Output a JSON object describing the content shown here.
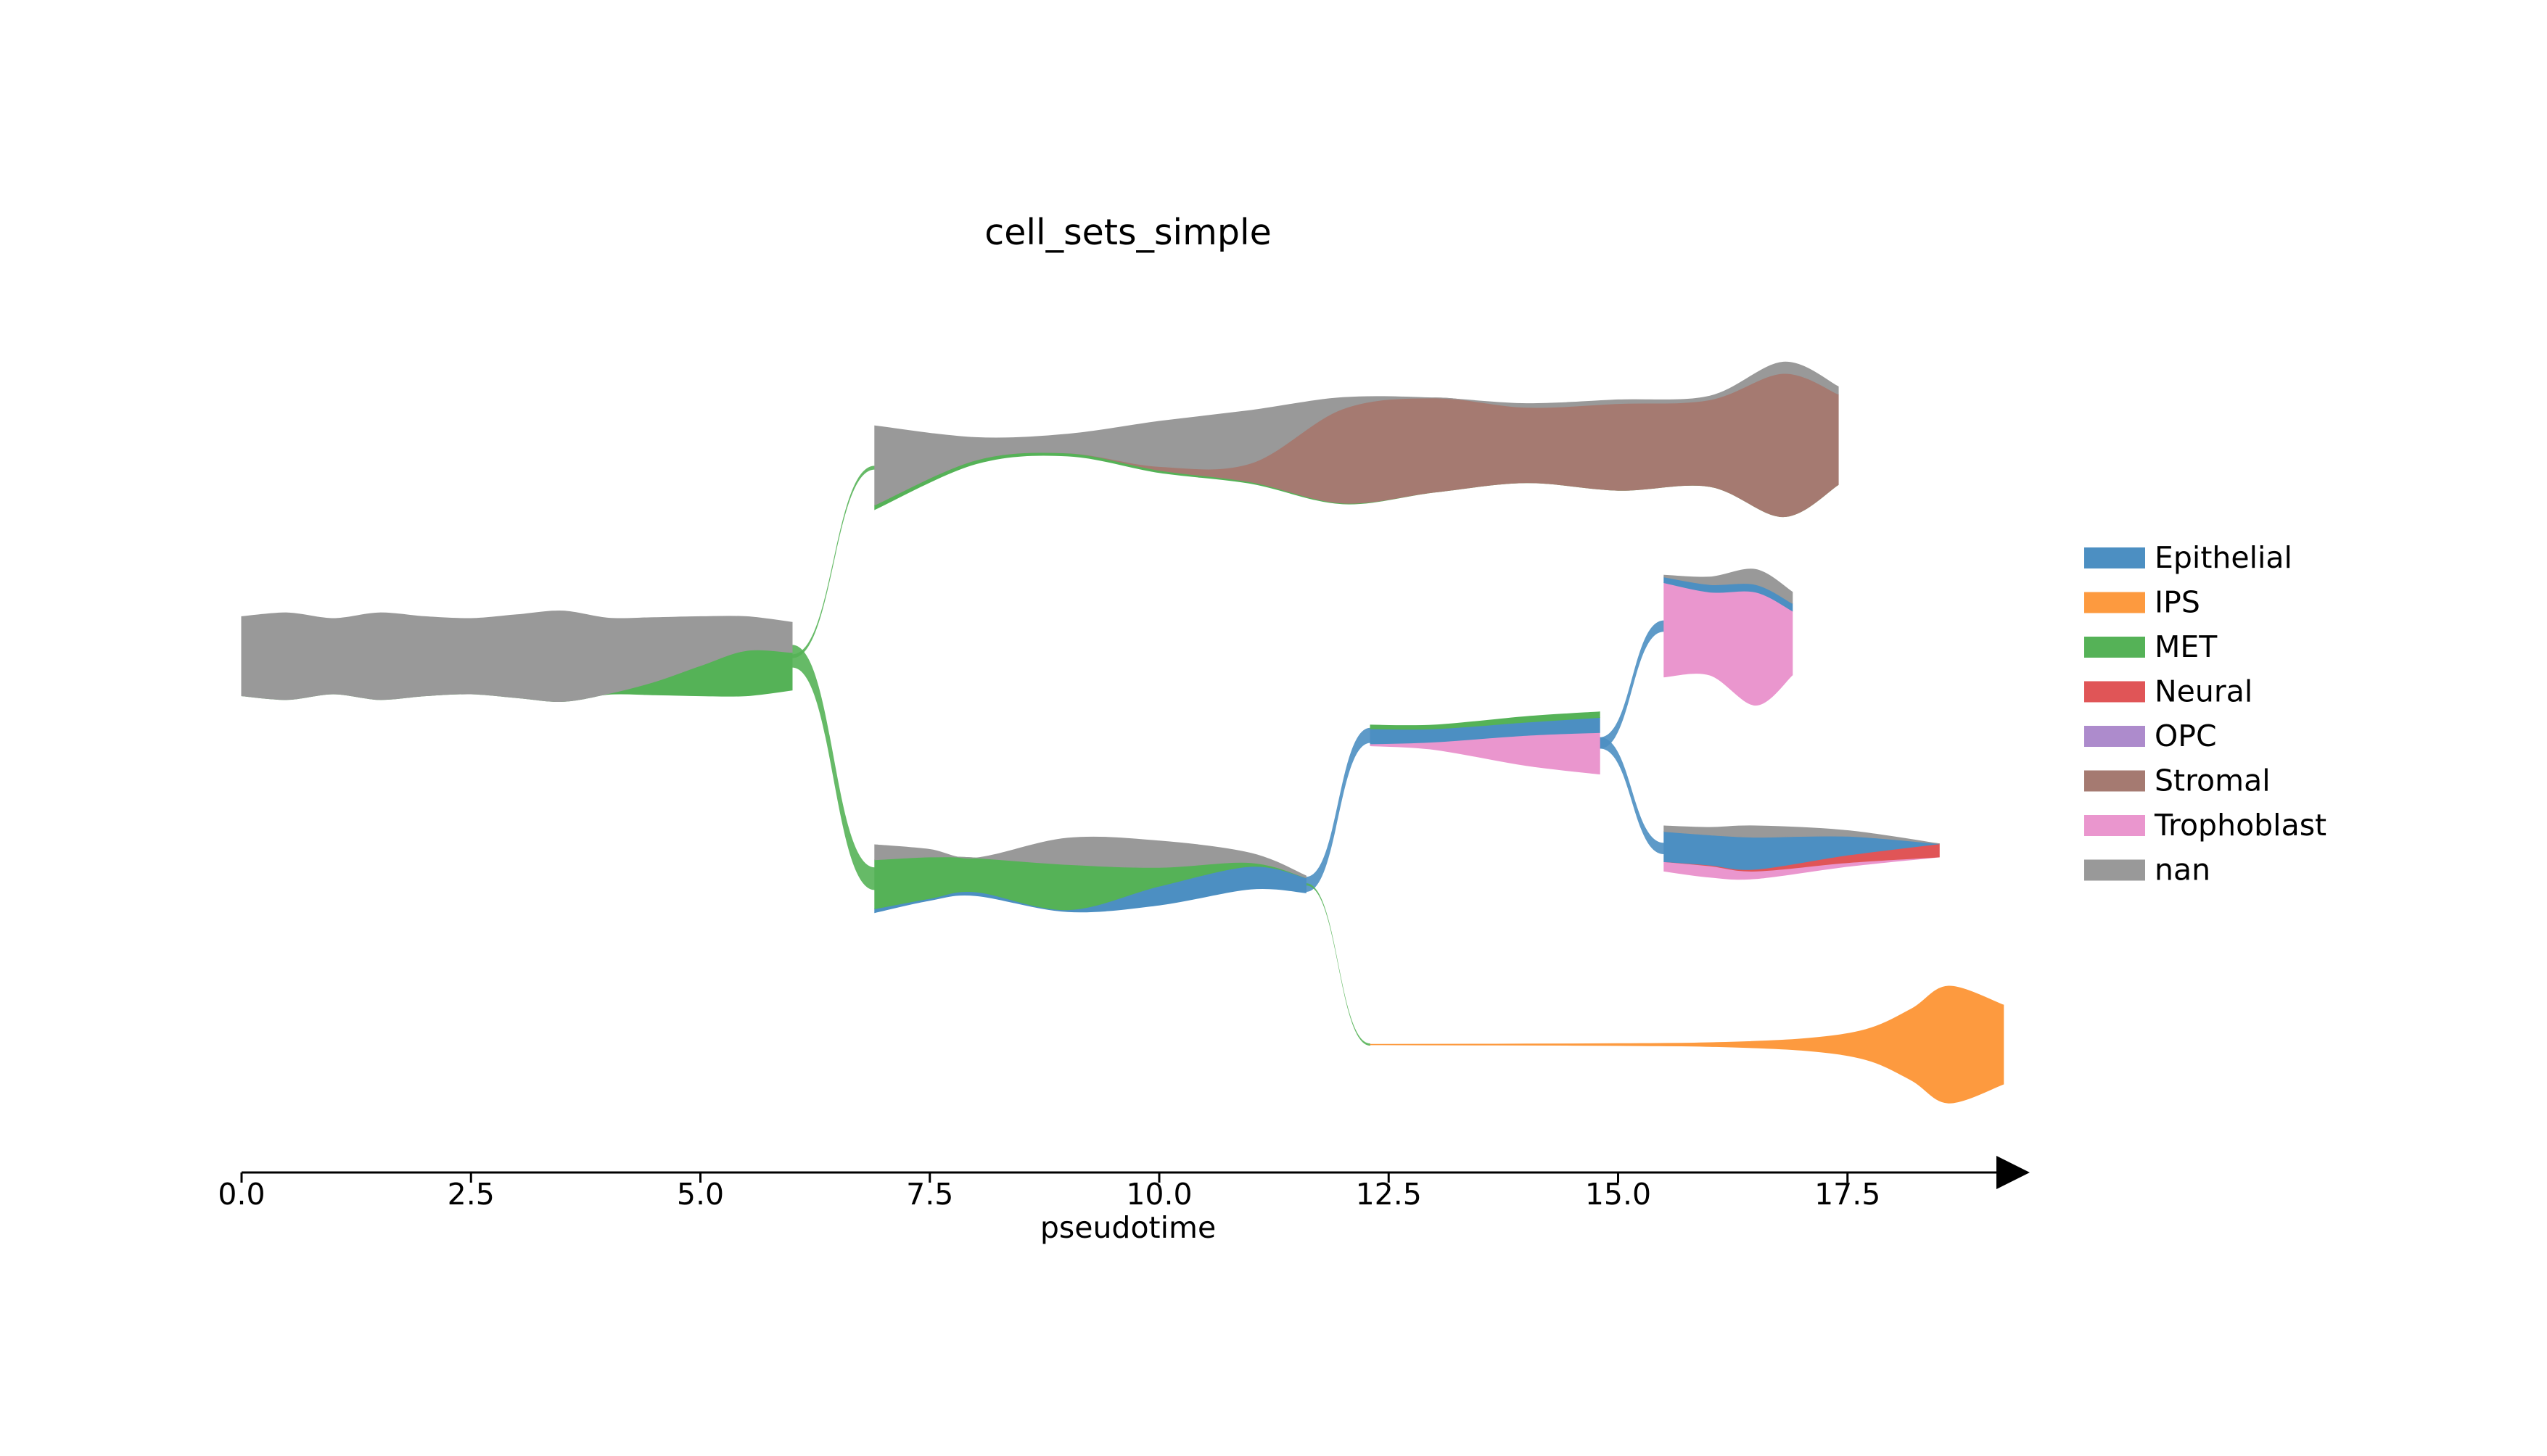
{
  "chart_data": {
    "type": "area",
    "subtype": "stream-tree",
    "title": "cell_sets_simple",
    "xlabel": "pseudotime",
    "ylabel": "",
    "xlim": [
      0.0,
      19.5
    ],
    "xticks": [
      0.0,
      2.5,
      5.0,
      7.5,
      10.0,
      12.5,
      15.0,
      17.5
    ],
    "xtick_labels": [
      "0.0",
      "2.5",
      "5.0",
      "7.5",
      "10.0",
      "12.5",
      "15.0",
      "17.5"
    ],
    "grid": false,
    "legend_position": "right",
    "categories": [
      "Epithelial",
      "IPS",
      "MET",
      "Neural",
      "OPC",
      "Stromal",
      "Trophoblast",
      "nan"
    ],
    "colors": {
      "Epithelial": "#4c8fc2",
      "IPS": "#fd9a3f",
      "MET": "#55b257",
      "Neural": "#e05557",
      "OPC": "#ad8bcc",
      "Stromal": "#a57a71",
      "Trophoblast": "#ea96ce",
      "nan": "#999999"
    },
    "branches": [
      {
        "name": "root",
        "x": [
          0.0,
          0.5,
          1.0,
          1.5,
          2.0,
          2.5,
          3.0,
          3.5,
          4.0,
          4.5,
          5.0,
          5.5,
          6.0
        ],
        "center": [
          0.0,
          0.0,
          0.0,
          0.0,
          0.0,
          0.0,
          0.0,
          0.0,
          0.0,
          0.0,
          0.0,
          0.0,
          0.0
        ],
        "series": [
          {
            "name": "MET",
            "values": [
              0.0,
              0.0,
              0.0,
              0.0,
              0.0,
              0.0,
              0.0,
              0.0,
              0.02,
              0.35,
              0.8,
              1.2,
              1.0
            ]
          },
          {
            "name": "nan",
            "values": [
              2.1,
              2.3,
              2.0,
              2.3,
              2.1,
              2.0,
              2.2,
              2.4,
              2.0,
              1.7,
              1.3,
              0.9,
              0.8
            ]
          }
        ]
      },
      {
        "name": "upper",
        "x": [
          6.9,
          8.0,
          9.0,
          10.0,
          11.0,
          12.0,
          13.0,
          14.0,
          15.0,
          16.0,
          16.8,
          17.4
        ],
        "center": [
          5.0,
          5.45,
          5.6,
          5.55,
          5.55,
          5.45,
          5.6,
          5.65,
          5.6,
          5.7,
          5.75,
          5.85
        ],
        "series": [
          {
            "name": "MET",
            "values": [
              0.12,
              0.1,
              0.08,
              0.06,
              0.04,
              0.02,
              0.0,
              0.0,
              0.0,
              0.0,
              0.0,
              0.0
            ]
          },
          {
            "name": "Stromal",
            "values": [
              0.0,
              0.0,
              0.0,
              0.1,
              0.5,
              2.5,
              2.5,
              2.0,
              2.3,
              2.3,
              3.8,
              2.4
            ]
          },
          {
            "name": "nan",
            "values": [
              2.1,
              0.6,
              0.5,
              1.2,
              1.4,
              0.3,
              0.0,
              0.1,
              0.1,
              0.1,
              0.3,
              0.2
            ]
          }
        ]
      },
      {
        "name": "lower",
        "x": [
          6.9,
          7.5,
          8.0,
          9.0,
          10.0,
          11.0,
          11.6
        ],
        "center": [
          -5.9,
          -5.8,
          -5.85,
          -5.8,
          -5.75,
          -5.7,
          -6.05
        ],
        "series": [
          {
            "name": "Epithelial",
            "values": [
              0.1,
              0.05,
              0.1,
              0.05,
              0.5,
              0.6,
              0.4
            ]
          },
          {
            "name": "MET",
            "values": [
              1.3,
              1.1,
              0.9,
              1.2,
              0.5,
              0.1,
              0.0
            ]
          },
          {
            "name": "nan",
            "values": [
              0.4,
              0.2,
              0.0,
              0.7,
              0.7,
              0.25,
              0.05
            ]
          }
        ]
      },
      {
        "name": "mid",
        "x": [
          12.3,
          13.0,
          14.0,
          14.8
        ],
        "center": [
          -2.1,
          -2.15,
          -2.25,
          -2.3
        ],
        "series": [
          {
            "name": "Trophoblast",
            "values": [
              0.05,
              0.2,
              0.8,
              1.1
            ]
          },
          {
            "name": "Epithelial",
            "values": [
              0.4,
              0.35,
              0.35,
              0.4
            ]
          },
          {
            "name": "MET",
            "values": [
              0.1,
              0.1,
              0.15,
              0.15
            ]
          }
        ]
      },
      {
        "name": "mid-upper",
        "x": [
          15.5,
          16.0,
          16.5,
          16.9
        ],
        "center": [
          0.8,
          0.8,
          0.5,
          0.6
        ],
        "series": [
          {
            "name": "Trophoblast",
            "values": [
              2.5,
              2.2,
              3.0,
              1.7
            ]
          },
          {
            "name": "Epithelial",
            "values": [
              0.15,
              0.2,
              0.2,
              0.2
            ]
          },
          {
            "name": "nan",
            "values": [
              0.05,
              0.2,
              0.4,
              0.3
            ]
          }
        ]
      },
      {
        "name": "mid-lower",
        "x": [
          15.5,
          16.0,
          16.5,
          17.5,
          18.5
        ],
        "center": [
          -5.1,
          -5.2,
          -5.2,
          -5.1,
          -5.15
        ],
        "series": [
          {
            "name": "Trophoblast",
            "values": [
              0.25,
              0.3,
              0.2,
              0.1,
              0.0
            ]
          },
          {
            "name": "Neural",
            "values": [
              0.0,
              0.02,
              0.05,
              0.2,
              0.35
            ]
          },
          {
            "name": "Epithelial",
            "values": [
              0.8,
              0.8,
              0.85,
              0.5,
              0.0
            ]
          },
          {
            "name": "nan",
            "values": [
              0.15,
              0.2,
              0.3,
              0.15,
              0.0
            ]
          }
        ]
      },
      {
        "name": "bottom",
        "x": [
          12.3,
          13.0,
          14.0,
          15.0,
          16.0,
          17.0,
          17.7,
          18.2,
          18.6,
          19.2
        ],
        "center": [
          -10.3,
          -10.3,
          -10.3,
          -10.3,
          -10.3,
          -10.3,
          -10.3,
          -10.3,
          -10.3,
          -10.3
        ],
        "series": [
          {
            "name": "IPS",
            "values": [
              0.01,
              0.02,
              0.03,
              0.05,
              0.1,
              0.3,
              0.8,
              1.9,
              3.1,
              2.1
            ]
          }
        ]
      }
    ],
    "connectors": [
      {
        "from": [
          6.0,
          0.0
        ],
        "to": [
          6.9,
          5.0
        ],
        "name": "MET",
        "width": 0.1
      },
      {
        "from": [
          6.0,
          0.0
        ],
        "to": [
          6.9,
          -5.9
        ],
        "name": "MET",
        "width": 0.6
      },
      {
        "from": [
          11.6,
          -6.05
        ],
        "to": [
          12.3,
          -2.1
        ],
        "name": "Epithelial",
        "width": 0.4
      },
      {
        "from": [
          11.6,
          -6.05
        ],
        "to": [
          12.3,
          -10.3
        ],
        "name": "MET",
        "width": 0.05
      },
      {
        "from": [
          14.8,
          -2.3
        ],
        "to": [
          15.5,
          0.8
        ],
        "name": "Epithelial",
        "width": 0.3
      },
      {
        "from": [
          14.8,
          -2.3
        ],
        "to": [
          15.5,
          -5.1
        ],
        "name": "Epithelial",
        "width": 0.3
      }
    ]
  }
}
